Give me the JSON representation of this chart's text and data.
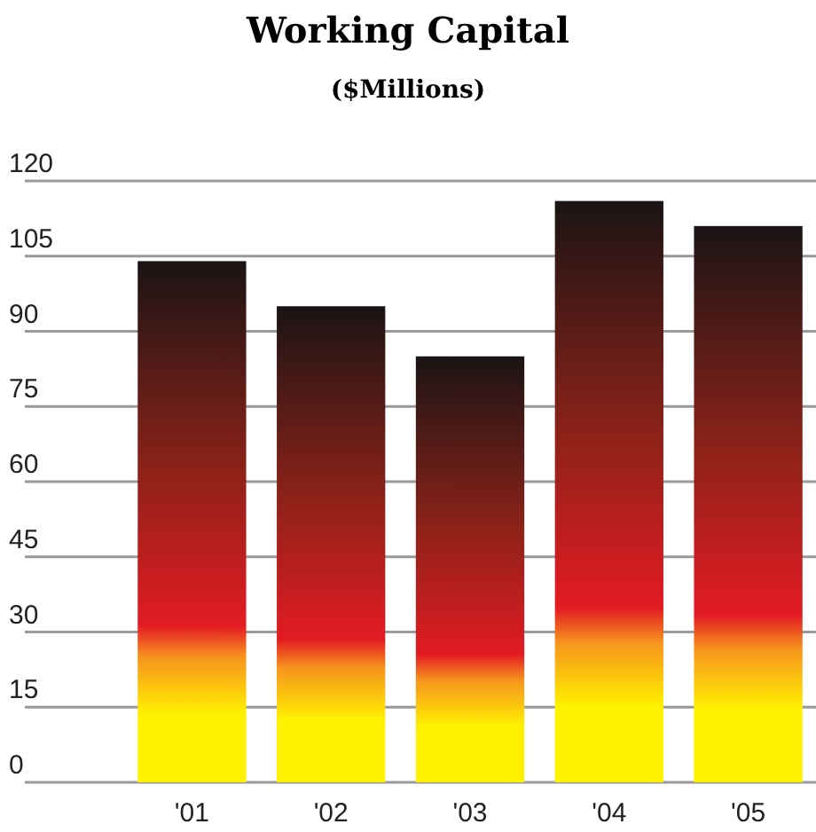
{
  "chart_data": {
    "type": "bar",
    "title": "Working Capital",
    "subtitle": "($Millions)",
    "categories": [
      "'01",
      "'02",
      "'03",
      "'04",
      "'05"
    ],
    "values": [
      104,
      95,
      85,
      116,
      111
    ],
    "color": "#e31b23",
    "ylim": [
      0,
      120
    ],
    "yticks": [
      0,
      15,
      30,
      45,
      60,
      75,
      90,
      105,
      120
    ],
    "grid": "y"
  }
}
